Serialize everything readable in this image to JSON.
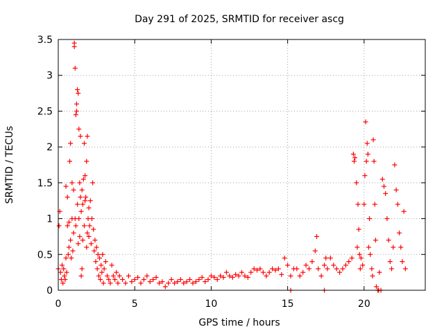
{
  "chart_data": {
    "type": "scatter",
    "title": "Day 291 of 2025, SRMTID for receiver ascg",
    "xlabel": "GPS time / hours",
    "ylabel": "SRMTID / TECUs",
    "xlim": [
      0,
      24
    ],
    "ylim": [
      0,
      3.5
    ],
    "x_ticks": [
      0,
      5,
      10,
      15,
      20
    ],
    "x_tick_labels": [
      "0",
      "5",
      "10",
      "15",
      "20"
    ],
    "y_ticks": [
      0,
      0.5,
      1,
      1.5,
      2,
      2.5,
      3,
      3.5
    ],
    "y_tick_labels": [
      "0",
      "0.5",
      "1",
      "1.5",
      "2",
      "2.5",
      "3",
      "3.5"
    ],
    "grid": true,
    "marker": "+",
    "marker_color": "#ff0000",
    "series": [
      {
        "name": "SRMTID",
        "points": [
          [
            0.0,
            0.3
          ],
          [
            0.05,
            0.9
          ],
          [
            0.1,
            1.1
          ],
          [
            0.15,
            0.25
          ],
          [
            0.2,
            0.15
          ],
          [
            0.25,
            0.35
          ],
          [
            0.3,
            0.1
          ],
          [
            0.35,
            0.3
          ],
          [
            0.4,
            0.2
          ],
          [
            0.45,
            0.15
          ],
          [
            0.5,
            0.45
          ],
          [
            0.5,
            1.45
          ],
          [
            0.55,
            0.25
          ],
          [
            0.6,
            0.9
          ],
          [
            0.6,
            1.3
          ],
          [
            0.65,
            0.5
          ],
          [
            0.7,
            0.6
          ],
          [
            0.7,
            0.95
          ],
          [
            0.75,
            1.8
          ],
          [
            0.8,
            0.7
          ],
          [
            0.8,
            2.05
          ],
          [
            0.85,
            0.45
          ],
          [
            0.9,
            1.0
          ],
          [
            0.9,
            1.5
          ],
          [
            0.95,
            0.55
          ],
          [
            1.0,
            0.8
          ],
          [
            1.0,
            1.4
          ],
          [
            1.05,
            3.45
          ],
          [
            1.05,
            3.4
          ],
          [
            1.1,
            3.1
          ],
          [
            1.1,
            1.0
          ],
          [
            1.15,
            2.45
          ],
          [
            1.15,
            0.9
          ],
          [
            1.2,
            2.6
          ],
          [
            1.2,
            2.5
          ],
          [
            1.25,
            2.8
          ],
          [
            1.25,
            1.2
          ],
          [
            1.3,
            2.75
          ],
          [
            1.3,
            0.65
          ],
          [
            1.35,
            2.25
          ],
          [
            1.35,
            1.0
          ],
          [
            1.4,
            1.5
          ],
          [
            1.4,
            0.75
          ],
          [
            1.45,
            2.15
          ],
          [
            1.45,
            1.3
          ],
          [
            1.5,
            1.1
          ],
          [
            1.5,
            0.2
          ],
          [
            1.55,
            0.3
          ],
          [
            1.55,
            1.4
          ],
          [
            1.6,
            1.2
          ],
          [
            1.6,
            0.7
          ],
          [
            1.65,
            1.55
          ],
          [
            1.7,
            2.05
          ],
          [
            1.7,
            0.9
          ],
          [
            1.75,
            1.6
          ],
          [
            1.75,
            1.25
          ],
          [
            1.8,
            1.3
          ],
          [
            1.85,
            1.8
          ],
          [
            1.85,
            0.6
          ],
          [
            1.9,
            2.15
          ],
          [
            1.9,
            0.8
          ],
          [
            1.95,
            1.0
          ],
          [
            2.0,
            0.75
          ],
          [
            2.0,
            1.15
          ],
          [
            2.05,
            0.9
          ],
          [
            2.1,
            1.25
          ],
          [
            2.15,
            0.65
          ],
          [
            2.2,
            1.0
          ],
          [
            2.25,
            1.5
          ],
          [
            2.3,
            0.85
          ],
          [
            2.35,
            0.55
          ],
          [
            2.4,
            0.7
          ],
          [
            2.45,
            0.4
          ],
          [
            2.5,
            0.6
          ],
          [
            2.55,
            0.3
          ],
          [
            2.6,
            0.5
          ],
          [
            2.65,
            0.2
          ],
          [
            2.7,
            0.45
          ],
          [
            2.75,
            0.15
          ],
          [
            2.8,
            0.35
          ],
          [
            2.85,
            0.25
          ],
          [
            2.9,
            0.5
          ],
          [
            2.95,
            0.1
          ],
          [
            3.0,
            0.3
          ],
          [
            3.1,
            0.4
          ],
          [
            3.2,
            0.2
          ],
          [
            3.3,
            0.15
          ],
          [
            3.4,
            0.1
          ],
          [
            3.5,
            0.35
          ],
          [
            3.6,
            0.2
          ],
          [
            3.7,
            0.15
          ],
          [
            3.8,
            0.25
          ],
          [
            3.9,
            0.1
          ],
          [
            4.0,
            0.2
          ],
          [
            4.2,
            0.15
          ],
          [
            4.4,
            0.1
          ],
          [
            4.6,
            0.2
          ],
          [
            4.8,
            0.12
          ],
          [
            5.0,
            0.15
          ],
          [
            5.2,
            0.18
          ],
          [
            5.4,
            0.1
          ],
          [
            5.6,
            0.15
          ],
          [
            5.8,
            0.2
          ],
          [
            6.0,
            0.12
          ],
          [
            6.2,
            0.15
          ],
          [
            6.4,
            0.18
          ],
          [
            6.6,
            0.1
          ],
          [
            6.8,
            0.12
          ],
          [
            7.0,
            0.05
          ],
          [
            7.2,
            0.1
          ],
          [
            7.4,
            0.15
          ],
          [
            7.6,
            0.1
          ],
          [
            7.8,
            0.12
          ],
          [
            8.0,
            0.15
          ],
          [
            8.2,
            0.1
          ],
          [
            8.4,
            0.12
          ],
          [
            8.6,
            0.15
          ],
          [
            8.8,
            0.1
          ],
          [
            9.0,
            0.12
          ],
          [
            9.2,
            0.15
          ],
          [
            9.4,
            0.18
          ],
          [
            9.6,
            0.12
          ],
          [
            9.8,
            0.15
          ],
          [
            10.0,
            0.2
          ],
          [
            10.2,
            0.18
          ],
          [
            10.4,
            0.15
          ],
          [
            10.6,
            0.2
          ],
          [
            10.8,
            0.18
          ],
          [
            11.0,
            0.25
          ],
          [
            11.2,
            0.2
          ],
          [
            11.4,
            0.18
          ],
          [
            11.6,
            0.22
          ],
          [
            11.8,
            0.2
          ],
          [
            12.0,
            0.25
          ],
          [
            12.2,
            0.2
          ],
          [
            12.4,
            0.18
          ],
          [
            12.6,
            0.25
          ],
          [
            12.8,
            0.3
          ],
          [
            13.0,
            0.28
          ],
          [
            13.2,
            0.3
          ],
          [
            13.4,
            0.25
          ],
          [
            13.6,
            0.2
          ],
          [
            13.8,
            0.25
          ],
          [
            14.0,
            0.3
          ],
          [
            14.2,
            0.28
          ],
          [
            14.4,
            0.3
          ],
          [
            14.6,
            0.22
          ],
          [
            14.8,
            0.45
          ],
          [
            15.0,
            0.35
          ],
          [
            15.2,
            0.2
          ],
          [
            15.4,
            0.3
          ],
          [
            15.6,
            0.3
          ],
          [
            15.8,
            0.2
          ],
          [
            16.0,
            0.25
          ],
          [
            16.2,
            0.35
          ],
          [
            16.4,
            0.3
          ],
          [
            16.6,
            0.4
          ],
          [
            16.8,
            0.55
          ],
          [
            16.9,
            0.75
          ],
          [
            17.0,
            0.3
          ],
          [
            17.2,
            0.2
          ],
          [
            17.4,
            0.35
          ],
          [
            17.5,
            0.45
          ],
          [
            17.6,
            0.3
          ],
          [
            17.8,
            0.45
          ],
          [
            18.0,
            0.35
          ],
          [
            18.2,
            0.3
          ],
          [
            18.4,
            0.25
          ],
          [
            18.6,
            0.3
          ],
          [
            18.8,
            0.35
          ],
          [
            19.0,
            0.4
          ],
          [
            19.2,
            0.45
          ],
          [
            19.3,
            1.9
          ],
          [
            19.35,
            1.8
          ],
          [
            19.4,
            1.85
          ],
          [
            19.5,
            1.5
          ],
          [
            19.55,
            0.6
          ],
          [
            19.6,
            1.2
          ],
          [
            19.65,
            0.85
          ],
          [
            19.7,
            0.5
          ],
          [
            19.75,
            0.3
          ],
          [
            19.8,
            0.45
          ],
          [
            19.9,
            0.35
          ],
          [
            20.0,
            1.2
          ],
          [
            20.05,
            1.6
          ],
          [
            20.1,
            2.35
          ],
          [
            20.15,
            1.8
          ],
          [
            20.2,
            2.05
          ],
          [
            20.25,
            1.9
          ],
          [
            20.3,
            0.6
          ],
          [
            20.35,
            1.0
          ],
          [
            20.4,
            0.5
          ],
          [
            20.5,
            0.3
          ],
          [
            20.55,
            0.2
          ],
          [
            20.6,
            2.1
          ],
          [
            20.65,
            1.8
          ],
          [
            20.7,
            1.2
          ],
          [
            20.75,
            0.7
          ],
          [
            20.8,
            0.05
          ],
          [
            20.9,
            0.0
          ],
          [
            21.0,
            0.25
          ],
          [
            21.1,
            0.0
          ],
          [
            21.2,
            1.55
          ],
          [
            21.3,
            1.45
          ],
          [
            21.4,
            1.35
          ],
          [
            21.5,
            1.0
          ],
          [
            21.6,
            0.7
          ],
          [
            21.7,
            0.4
          ],
          [
            21.8,
            0.3
          ],
          [
            21.9,
            0.6
          ],
          [
            22.0,
            1.75
          ],
          [
            22.1,
            1.4
          ],
          [
            22.2,
            1.2
          ],
          [
            22.3,
            0.8
          ],
          [
            22.4,
            0.6
          ],
          [
            22.5,
            0.4
          ],
          [
            22.6,
            1.1
          ],
          [
            22.7,
            0.3
          ],
          [
            15.2,
            0.0
          ],
          [
            17.4,
            0.0
          ],
          [
            20.95,
            0.0
          ]
        ]
      }
    ]
  }
}
